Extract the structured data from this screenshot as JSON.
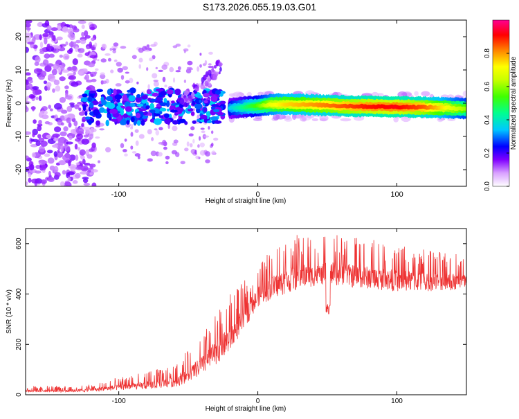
{
  "title": "S173.2026.055.19.03.G01",
  "chart_data": [
    {
      "type": "heatmap",
      "name": "spectrogram",
      "xlabel": "Height of straight line (km)",
      "ylabel": "Frequency (Hz)",
      "xlim": [
        -167,
        150
      ],
      "ylim": [
        -25,
        25
      ],
      "xticks": [
        -100,
        0,
        100
      ],
      "yticks": [
        -20,
        -10,
        0,
        10,
        20
      ],
      "colorbar": {
        "label": "Normalized spectral amplitude",
        "range": [
          0,
          1
        ],
        "ticks": [
          0.0,
          0.2,
          0.4,
          0.6,
          0.8
        ],
        "tick_labels": [
          "0.0",
          "0.2",
          "0.4",
          "0.6",
          "0.8"
        ],
        "colormap": [
          "#ffffff",
          "#c080ff",
          "#8000ff",
          "#0000ff",
          "#00e0ff",
          "#00ff80",
          "#80ff00",
          "#ffff00",
          "#ff8000",
          "#ff0000",
          "#ff0080"
        ]
      },
      "ridge": {
        "description_points_x": [
          -20,
          -10,
          0,
          10,
          20,
          40,
          60,
          80,
          100,
          120,
          150
        ],
        "frequency_hz": [
          -1.5,
          -1.2,
          -0.8,
          -0.4,
          -0.3,
          -0.5,
          -0.8,
          -1.0,
          -1.1,
          -1.2,
          -1.6
        ],
        "amplitude": [
          0.35,
          0.45,
          0.55,
          0.7,
          0.75,
          0.8,
          0.85,
          0.9,
          0.92,
          0.85,
          0.6
        ]
      }
    },
    {
      "type": "line",
      "name": "snr",
      "xlabel": "Height of straight line (km)",
      "ylabel": "SNR (10 * v/v)",
      "xlim": [
        -167,
        150
      ],
      "ylim": [
        0,
        660
      ],
      "xticks": [
        -100,
        0,
        100
      ],
      "yticks": [
        0,
        200,
        400,
        600
      ],
      "color": "#ee3333",
      "envelope": {
        "x": [
          -167,
          -140,
          -120,
          -100,
          -80,
          -60,
          -50,
          -40,
          -30,
          -20,
          -10,
          0,
          10,
          20,
          30,
          40,
          50,
          60,
          80,
          100,
          120,
          150
        ],
        "baseline": [
          10,
          10,
          12,
          18,
          22,
          30,
          50,
          80,
          120,
          170,
          260,
          350,
          380,
          400,
          420,
          430,
          440,
          430,
          420,
          410,
          410,
          415
        ],
        "peak": [
          35,
          35,
          40,
          70,
          90,
          120,
          180,
          240,
          330,
          400,
          450,
          520,
          580,
          620,
          640,
          620,
          630,
          640,
          620,
          600,
          580,
          560
        ]
      }
    }
  ]
}
